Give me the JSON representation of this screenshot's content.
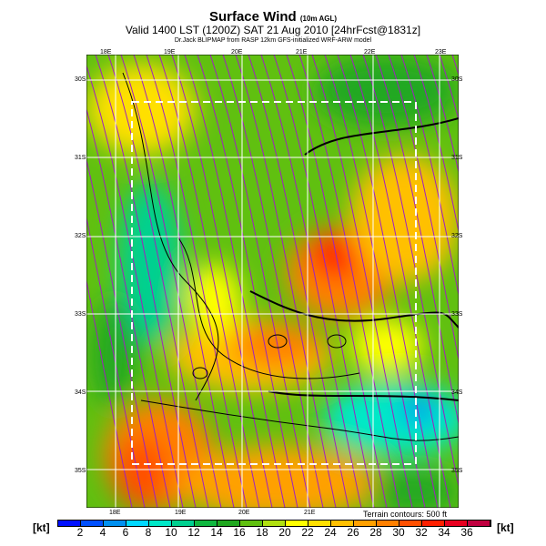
{
  "header": {
    "title": "Surface Wind",
    "title_suffix": "(10m AGL)",
    "valid": "Valid 1400 LST (1200Z) SAT 21 Aug 2010 [24hrFcst@1831z]",
    "credit": "Dr.Jack BLIPMAP from RASP 12km GFS-initialized WRF-ARW model"
  },
  "axes": {
    "top": [
      "18E",
      "19E",
      "20E",
      "21E",
      "22E",
      "23E"
    ],
    "bottom": [
      "18E",
      "19E",
      "20E",
      "21E"
    ],
    "left": [
      "30S",
      "31S",
      "32S",
      "33S",
      "34S",
      "35S"
    ],
    "right": [
      "30S",
      "31S",
      "32S",
      "33S",
      "34S",
      "35S"
    ]
  },
  "terrain_note": "Terrain contours: 500 ft",
  "colorbar": {
    "unit": "[kt]",
    "ticks": [
      "2",
      "4",
      "6",
      "8",
      "10",
      "12",
      "14",
      "16",
      "18",
      "20",
      "22",
      "24",
      "26",
      "28",
      "30",
      "32",
      "34",
      "36"
    ],
    "colors": [
      "#0010ff",
      "#0050ff",
      "#0090f0",
      "#00d8ff",
      "#00e8c8",
      "#00d090",
      "#10b840",
      "#20a820",
      "#60c010",
      "#b0e010",
      "#ffff00",
      "#ffe000",
      "#ffc000",
      "#ffa000",
      "#ff8000",
      "#ff5000",
      "#ff2000",
      "#e80020",
      "#c00040"
    ]
  }
}
